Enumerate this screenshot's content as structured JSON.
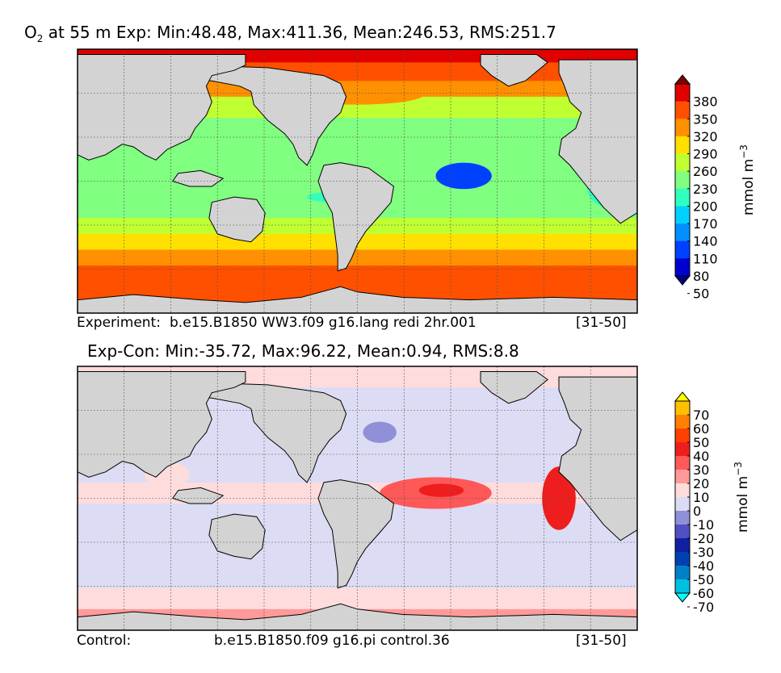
{
  "chart_data": [
    {
      "type": "heatmap",
      "title_prefix": "O",
      "title_sub": "2",
      "title_rest": " at 55 m Exp: Min:48.48, Max:411.36, Mean:246.53, RMS:251.7",
      "colorbar": {
        "ticks": [
          "380",
          "350",
          "320",
          "290",
          "260",
          "230",
          "200",
          "170",
          "140",
          "110",
          "80",
          "50"
        ],
        "unit_text": "mmol m",
        "unit_sup": "−3",
        "colors": [
          "#000080",
          "#0000cd",
          "#0040ff",
          "#0090ff",
          "#00d0ff",
          "#30ffc0",
          "#80ff80",
          "#c0ff30",
          "#ffe000",
          "#ff9000",
          "#ff5000",
          "#e00000",
          "#800000"
        ]
      },
      "footer": {
        "left": "Experiment:",
        "center": "b.e15.B1850 WW3.f09 g16.lang redi 2hr.001",
        "right": "[31-50]"
      }
    },
    {
      "type": "heatmap",
      "title": "Exp-Con: Min:-35.72, Max:96.22, Mean:0.94, RMS:8.8",
      "colorbar": {
        "ticks": [
          "70",
          "60",
          "50",
          "40",
          "30",
          "20",
          "10",
          "0",
          "-10",
          "-20",
          "-30",
          "-40",
          "-50",
          "-60",
          "-70"
        ],
        "unit_text": "mmol m",
        "unit_sup": "−3",
        "colors": [
          "#00ffff",
          "#00c0e0",
          "#0080c8",
          "#0040b0",
          "#1020a0",
          "#5050c0",
          "#9090d8",
          "#dcdcf4",
          "#ffdcdc",
          "#ff9a9a",
          "#ff5858",
          "#ee1e1e",
          "#ff4000",
          "#ff8000",
          "#ffc000",
          "#ffff00"
        ]
      },
      "footer": {
        "left": "Control:",
        "center": "b.e15.B1850.f09 g16.pi control.36",
        "right": "[31-50]"
      }
    }
  ]
}
